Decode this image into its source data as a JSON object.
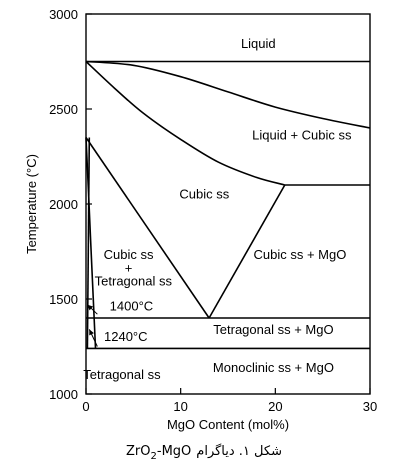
{
  "chart_data": {
    "type": "line",
    "title": "",
    "xlabel": "MgO Content (mol%)",
    "ylabel": "Temperature (°C)",
    "xlim": [
      0,
      30
    ],
    "ylim": [
      1000,
      3000
    ],
    "x_ticks": [
      0,
      10,
      20,
      30
    ],
    "y_ticks": [
      1000,
      1500,
      2000,
      2500,
      3000
    ],
    "grid": false,
    "series": [
      {
        "x": [
          0,
          5,
          10,
          15,
          20,
          25,
          30
        ],
        "y": [
          2750,
          2730,
          2670,
          2590,
          2510,
          2450,
          2400
        ]
      },
      {
        "x": [
          0,
          30
        ],
        "y": [
          2750,
          2750
        ]
      },
      {
        "x": [
          0,
          3,
          6,
          10,
          14,
          18,
          21
        ],
        "y": [
          2750,
          2610,
          2480,
          2340,
          2220,
          2140,
          2100
        ]
      },
      {
        "x": [
          21,
          30
        ],
        "y": [
          2100,
          2100
        ]
      },
      {
        "x": [
          0,
          13
        ],
        "y": [
          2350,
          1400
        ]
      },
      {
        "x": [
          13,
          21
        ],
        "y": [
          1400,
          2100
        ]
      },
      {
        "x": [
          0,
          30
        ],
        "y": [
          1400,
          1400
        ]
      },
      {
        "x": [
          0,
          30
        ],
        "y": [
          1240,
          1240
        ]
      },
      {
        "x": [
          0,
          0.5,
          1
        ],
        "y": [
          2350,
          1800,
          1240
        ]
      },
      {
        "x": [
          0.15,
          0.35
        ],
        "y": [
          1240,
          2350
        ]
      }
    ],
    "annotations": [
      {
        "text": "Liquid",
        "x": 18.2,
        "y": 2820
      },
      {
        "text": "Liquid + Cubic ss",
        "x": 22.8,
        "y": 2340
      },
      {
        "text": "Cubic ss",
        "x": 12.5,
        "y": 2030
      },
      {
        "text": "Cubic ss",
        "x": 4.5,
        "y": 1710
      },
      {
        "text": "+",
        "x": 4.5,
        "y": 1640
      },
      {
        "text": "Tetragonal ss",
        "x": 5.0,
        "y": 1570
      },
      {
        "text": "Cubic ss + MgO",
        "x": 22.6,
        "y": 1710
      },
      {
        "text": "1400°C",
        "x": 4.8,
        "y": 1440
      },
      {
        "text": "1240°C",
        "x": 4.2,
        "y": 1280
      },
      {
        "text": "Tetragonal ss + MgO",
        "x": 19.8,
        "y": 1315
      },
      {
        "text": "Monoclinic ss + MgO",
        "x": 19.8,
        "y": 1115
      },
      {
        "text": "Tetragonal ss",
        "x": 3.8,
        "y": 1080
      }
    ],
    "arrows": [
      {
        "from": [
          1.2,
          1420
        ],
        "to": [
          0.15,
          1470
        ]
      },
      {
        "from": [
          1.2,
          1250
        ],
        "to": [
          0.35,
          1340
        ]
      }
    ]
  },
  "caption": {
    "persian": "شکل ۱. دیاگرام",
    "formula_base": "ZrO",
    "formula_sub": "2",
    "formula_rest": "-MgO"
  }
}
